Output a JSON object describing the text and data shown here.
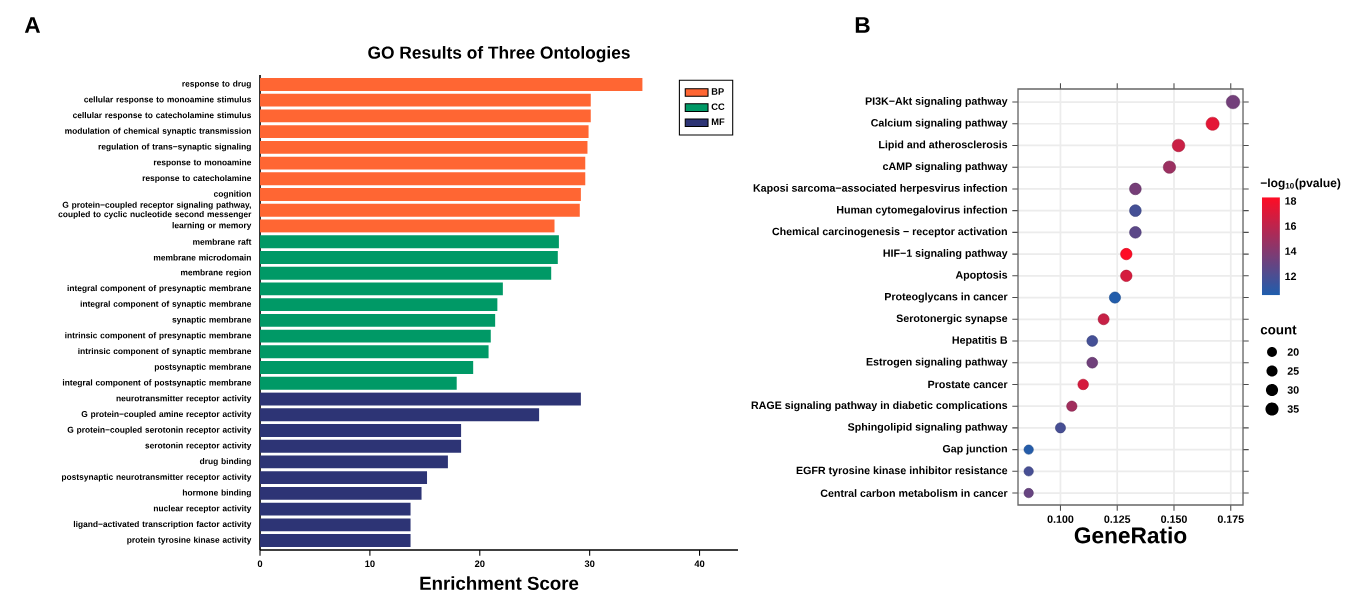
{
  "chart_data": [
    {
      "type": "bar",
      "orientation": "horizontal",
      "title": "GO Results of Three Ontologies",
      "xlabel": "Enrichment Score",
      "annotations": [
        "A"
      ],
      "categories": [
        "response to drug",
        "cellular response to monoamine stimulus",
        "cellular response to catecholamine stimulus",
        "modulation of chemical synaptic transmission",
        "regulation of trans−synaptic signaling",
        "response to monoamine",
        "response to catecholamine",
        "cognition",
        "G protein−coupled receptor signaling pathway, coupled to cyclic nucleotide second messenger",
        "learning or memory",
        "membrane raft",
        "membrane microdomain",
        "membrane region",
        "integral component of presynaptic membrane",
        "integral component of synaptic membrane",
        "synaptic membrane",
        "intrinsic component of presynaptic membrane",
        "intrinsic component of synaptic membrane",
        "postsynaptic membrane",
        "integral component of postsynaptic membrane",
        "neurotransmitter receptor activity",
        "G protein−coupled amine receptor activity",
        "G protein−coupled serotonin receptor activity",
        "serotonin receptor activity",
        "drug binding",
        "postsynaptic neurotransmitter receptor activity",
        "hormone binding",
        "nuclear receptor activity",
        "ligand−activated transcription factor activity",
        "protein tyrosine kinase activity"
      ],
      "series": [
        {
          "name": "BP",
          "color": "#ff6633",
          "values": [
            34.8,
            30.1,
            30.1,
            29.9,
            29.8,
            29.6,
            29.6,
            29.2,
            29.1,
            26.8,
            null,
            null,
            null,
            null,
            null,
            null,
            null,
            null,
            null,
            null,
            null,
            null,
            null,
            null,
            null,
            null,
            null,
            null,
            null,
            null
          ]
        },
        {
          "name": "CC",
          "color": "#009966",
          "values": [
            null,
            null,
            null,
            null,
            null,
            null,
            null,
            null,
            null,
            null,
            27.2,
            27.1,
            26.5,
            22.1,
            21.6,
            21.4,
            21.0,
            20.8,
            19.4,
            17.9,
            null,
            null,
            null,
            null,
            null,
            null,
            null,
            null,
            null,
            null
          ]
        },
        {
          "name": "MF",
          "color": "#2d3475",
          "values": [
            null,
            null,
            null,
            null,
            null,
            null,
            null,
            null,
            null,
            null,
            null,
            null,
            null,
            null,
            null,
            null,
            null,
            null,
            null,
            null,
            29.2,
            25.4,
            18.3,
            18.3,
            17.1,
            15.2,
            14.7,
            13.7,
            13.7,
            13.7
          ]
        }
      ],
      "xlim": [
        0,
        43.5
      ],
      "xticks": [
        0,
        10,
        20,
        30,
        40
      ],
      "legend": "top right"
    },
    {
      "type": "bubble",
      "orientation": "horizontal",
      "xlabel": "GeneRatio",
      "clabel": "−log$_{10}$(pvalue)",
      "legend_title": "count",
      "annotations": [
        "B"
      ],
      "categories": [
        "PI3K−Akt signaling pathway",
        "Calcium signaling pathway",
        "Lipid and atherosclerosis",
        "cAMP signaling pathway",
        "Kaposi sarcoma−associated herpesvirus infection",
        "Human cytomegalovirus infection",
        "Chemical carcinogenesis − receptor activation",
        "HIF−1 signaling pathway",
        "Apoptosis",
        "Proteoglycans in cancer",
        "Serotonergic synapse",
        "Hepatitis B",
        "Estrogen signaling pathway",
        "Prostate cancer",
        "RAGE signaling pathway in diabetic complications",
        "Sphingolipid signaling pathway",
        "Gap junction",
        "EGFR tyrosine kinase inhibitor resistance",
        "Central carbon metabolism in cancer"
      ],
      "values": [
        0.176,
        0.167,
        0.152,
        0.148,
        0.133,
        0.133,
        0.133,
        0.129,
        0.129,
        0.124,
        0.119,
        0.114,
        0.114,
        0.11,
        0.105,
        0.1,
        0.086,
        0.086,
        0.086
      ],
      "sizes": [
        37,
        35,
        32,
        31,
        28,
        28,
        28,
        27,
        27,
        26,
        25,
        24,
        24,
        23,
        22,
        21,
        18,
        18,
        18
      ],
      "cvalues": [
        13.4,
        17.3,
        16.4,
        14.8,
        13.5,
        11.8,
        12.6,
        18.2,
        16.8,
        10.6,
        16.3,
        11.8,
        13.3,
        16.8,
        15.0,
        11.9,
        10.7,
        11.9,
        13.0
      ],
      "size_legend": [
        20,
        25,
        30,
        35
      ],
      "clim": [
        10.5,
        18.3
      ],
      "cticks": [
        12,
        14,
        16,
        18
      ],
      "xlim": [
        0.0813,
        0.1804
      ],
      "xticks": [
        {
          "value": 0.1,
          "label": "0.100"
        },
        {
          "value": 0.125,
          "label": "0.125"
        },
        {
          "value": 0.15,
          "label": "0.150"
        },
        {
          "value": 0.175,
          "label": "0.175"
        }
      ],
      "grid": true
    }
  ]
}
